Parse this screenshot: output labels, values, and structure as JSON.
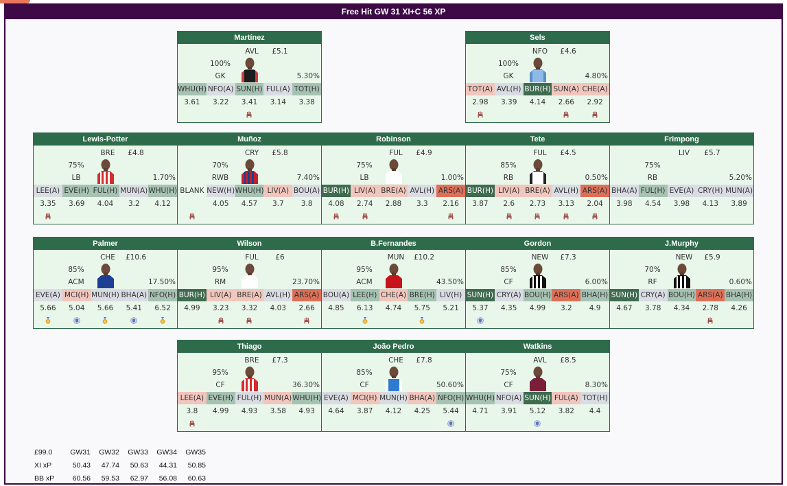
{
  "title": "Free Hit GW 31 XI+C 56 XP",
  "colors": {
    "frame": "#3d0a46",
    "card_header": "#2e6b4a",
    "card_bg": "#e9f6ea",
    "fdr": {
      "1": "#3f6b4f",
      "2": "#a6c2b2",
      "3": "#d9dde3",
      "4": "#f1c6bd",
      "5": "#de6f57"
    }
  },
  "players": [
    {
      "name": "Martínez",
      "team": "AVL",
      "price": "£5.1",
      "prob": "100%",
      "pos": "GK",
      "sel": "5.30%",
      "kit": "gk-black",
      "fixtures": [
        {
          "label": "WHU(H)",
          "fdr": 2
        },
        {
          "label": "NFO(A)",
          "fdr": 3
        },
        {
          "label": "SUN(H)",
          "fdr": 2
        },
        {
          "label": "FUL(A)",
          "fdr": 3
        },
        {
          "label": "TOT(H)",
          "fdr": 2
        }
      ],
      "xp": [
        "3.61",
        "3.22",
        "3.41",
        "3.14",
        "3.38"
      ],
      "icons": [
        "",
        "",
        "glove",
        "",
        ""
      ]
    },
    {
      "name": "Sels",
      "team": "NFO",
      "price": "£4.6",
      "prob": "100%",
      "pos": "GK",
      "sel": "4.80%",
      "kit": "gk-blue",
      "fixtures": [
        {
          "label": "TOT(A)",
          "fdr": 4
        },
        {
          "label": "AVL(H)",
          "fdr": 3
        },
        {
          "label": "BUR(H)",
          "fdr": 1
        },
        {
          "label": "SUN(A)",
          "fdr": 4
        },
        {
          "label": "CHE(A)",
          "fdr": 4
        }
      ],
      "xp": [
        "2.98",
        "3.39",
        "4.14",
        "2.66",
        "2.92"
      ],
      "icons": [
        "glove",
        "",
        "",
        "glove",
        "glove"
      ]
    },
    {
      "name": "Lewis-Potter",
      "team": "BRE",
      "price": "£4.8",
      "prob": "75%",
      "pos": "LB",
      "sel": "1.70%",
      "kit": "bre",
      "fixtures": [
        {
          "label": "LEE(A)",
          "fdr": 3
        },
        {
          "label": "EVE(H)",
          "fdr": 2
        },
        {
          "label": "FUL(H)",
          "fdr": 2
        },
        {
          "label": "MUN(A)",
          "fdr": 3
        },
        {
          "label": "WHU(H)",
          "fdr": 2
        }
      ],
      "xp": [
        "3.35",
        "3.69",
        "4.04",
        "3.2",
        "4.12"
      ],
      "icons": [
        "glove",
        "",
        "",
        "",
        ""
      ]
    },
    {
      "name": "Muñoz",
      "team": "CRY",
      "price": "£5.8",
      "prob": "70%",
      "pos": "RWB",
      "sel": "7.40%",
      "kit": "cry",
      "fixtures": [
        {
          "label": "BLANK",
          "fdr": 0
        },
        {
          "label": "NEW(H)",
          "fdr": 3
        },
        {
          "label": "WHU(H)",
          "fdr": 2
        },
        {
          "label": "LIV(A)",
          "fdr": 4
        },
        {
          "label": "BOU(A)",
          "fdr": 3
        }
      ],
      "xp": [
        "",
        "4.05",
        "4.57",
        "3.7",
        "3.8"
      ],
      "icons": [
        "glove",
        "",
        "",
        "",
        ""
      ]
    },
    {
      "name": "Robinson",
      "team": "FUL",
      "price": "£4.9",
      "prob": "75%",
      "pos": "LB",
      "sel": "1.00%",
      "kit": "ful",
      "fixtures": [
        {
          "label": "BUR(H)",
          "fdr": 1
        },
        {
          "label": "LIV(A)",
          "fdr": 4
        },
        {
          "label": "BRE(A)",
          "fdr": 4
        },
        {
          "label": "AVL(H)",
          "fdr": 3
        },
        {
          "label": "ARS(A)",
          "fdr": 5
        }
      ],
      "xp": [
        "4.08",
        "2.74",
        "2.88",
        "3.3",
        "2.16"
      ],
      "icons": [
        "glove",
        "glove",
        "",
        "",
        "glove"
      ]
    },
    {
      "name": "Tete",
      "team": "FUL",
      "price": "£4.5",
      "prob": "85%",
      "pos": "RB",
      "sel": "0.50%",
      "kit": "ful-dark",
      "fixtures": [
        {
          "label": "BUR(H)",
          "fdr": 1
        },
        {
          "label": "LIV(A)",
          "fdr": 4
        },
        {
          "label": "BRE(A)",
          "fdr": 4
        },
        {
          "label": "AVL(H)",
          "fdr": 3
        },
        {
          "label": "ARS(A)",
          "fdr": 5
        }
      ],
      "xp": [
        "3.87",
        "2.6",
        "2.73",
        "3.13",
        "2.04"
      ],
      "icons": [
        "",
        "glove",
        "glove",
        "glove",
        "glove"
      ]
    },
    {
      "name": "Frimpong",
      "team": "LIV",
      "price": "£5.7",
      "prob": "75%",
      "pos": "RB",
      "sel": "5.20%",
      "kit": "none",
      "fixtures": [
        {
          "label": "BHA(A)",
          "fdr": 3
        },
        {
          "label": "FUL(H)",
          "fdr": 2
        },
        {
          "label": "EVE(A)",
          "fdr": 3
        },
        {
          "label": "CRY(H)",
          "fdr": 3
        },
        {
          "label": "MUN(A)",
          "fdr": 3
        }
      ],
      "xp": [
        "3.98",
        "4.54",
        "3.98",
        "4.13",
        "3.89"
      ],
      "icons": [
        "",
        "",
        "",
        "",
        ""
      ]
    },
    {
      "name": "Palmer",
      "team": "CHE",
      "price": "£10.6",
      "prob": "85%",
      "pos": "ACM",
      "sel": "17.50%",
      "kit": "che",
      "fixtures": [
        {
          "label": "EVE(A)",
          "fdr": 3
        },
        {
          "label": "MCI(H)",
          "fdr": 4
        },
        {
          "label": "MUN(H)",
          "fdr": 3
        },
        {
          "label": "BHA(A)",
          "fdr": 3
        },
        {
          "label": "NFO(H)",
          "fdr": 2
        }
      ],
      "xp": [
        "5.66",
        "5.04",
        "5.66",
        "5.41",
        "6.52"
      ],
      "icons": [
        "medal",
        "shield",
        "medal",
        "shield",
        "medal"
      ]
    },
    {
      "name": "Wilson",
      "team": "FUL",
      "price": "£6",
      "prob": "95%",
      "pos": "RM",
      "sel": "23.70%",
      "kit": "ful",
      "fixtures": [
        {
          "label": "BUR(H)",
          "fdr": 1
        },
        {
          "label": "LIV(A)",
          "fdr": 4
        },
        {
          "label": "BRE(A)",
          "fdr": 4
        },
        {
          "label": "AVL(H)",
          "fdr": 3
        },
        {
          "label": "ARS(A)",
          "fdr": 5
        }
      ],
      "xp": [
        "4.99",
        "3.23",
        "3.32",
        "4.03",
        "2.66"
      ],
      "icons": [
        "",
        "glove",
        "glove",
        "",
        "glove"
      ]
    },
    {
      "name": "B.Fernandes",
      "team": "MUN",
      "price": "£10.2",
      "prob": "95%",
      "pos": "ACM",
      "sel": "43.50%",
      "kit": "mun",
      "fixtures": [
        {
          "label": "BOU(A)",
          "fdr": 3
        },
        {
          "label": "LEE(H)",
          "fdr": 2
        },
        {
          "label": "CHE(A)",
          "fdr": 4
        },
        {
          "label": "BRE(H)",
          "fdr": 2
        },
        {
          "label": "LIV(H)",
          "fdr": 3
        }
      ],
      "xp": [
        "4.85",
        "6.13",
        "4.74",
        "5.75",
        "5.21"
      ],
      "icons": [
        "",
        "medal",
        "",
        "medal",
        ""
      ]
    },
    {
      "name": "Gordon",
      "team": "NEW",
      "price": "£7.3",
      "prob": "85%",
      "pos": "CF",
      "sel": "6.00%",
      "kit": "new",
      "fixtures": [
        {
          "label": "SUN(H)",
          "fdr": 1
        },
        {
          "label": "CRY(A)",
          "fdr": 3
        },
        {
          "label": "BOU(H)",
          "fdr": 2
        },
        {
          "label": "ARS(A)",
          "fdr": 5
        },
        {
          "label": "BHA(H)",
          "fdr": 2
        }
      ],
      "xp": [
        "5.37",
        "4.35",
        "4.99",
        "3.2",
        "4.9"
      ],
      "icons": [
        "shield",
        "",
        "",
        "",
        ""
      ]
    },
    {
      "name": "J.Murphy",
      "team": "NEW",
      "price": "£5.9",
      "prob": "70%",
      "pos": "RF",
      "sel": "0.60%",
      "kit": "new",
      "fixtures": [
        {
          "label": "SUN(H)",
          "fdr": 1
        },
        {
          "label": "CRY(A)",
          "fdr": 3
        },
        {
          "label": "BOU(H)",
          "fdr": 2
        },
        {
          "label": "ARS(A)",
          "fdr": 5
        },
        {
          "label": "BHA(H)",
          "fdr": 2
        }
      ],
      "xp": [
        "4.67",
        "3.78",
        "4.34",
        "2.78",
        "4.26"
      ],
      "icons": [
        "",
        "",
        "",
        "glove",
        ""
      ]
    },
    {
      "name": "Thiago",
      "team": "BRE",
      "price": "£7.3",
      "prob": "95%",
      "pos": "CF",
      "sel": "36.30%",
      "kit": "bre",
      "fixtures": [
        {
          "label": "LEE(A)",
          "fdr": 4
        },
        {
          "label": "EVE(H)",
          "fdr": 2
        },
        {
          "label": "FUL(H)",
          "fdr": 3
        },
        {
          "label": "MUN(A)",
          "fdr": 4
        },
        {
          "label": "WHU(H)",
          "fdr": 2
        }
      ],
      "xp": [
        "3.8",
        "4.99",
        "4.93",
        "3.58",
        "4.93"
      ],
      "icons": [
        "glove",
        "",
        "",
        "",
        ""
      ]
    },
    {
      "name": "João Pedro",
      "team": "CHE",
      "price": "£7.8",
      "prob": "85%",
      "pos": "CF",
      "sel": "50.60%",
      "kit": "bha",
      "fixtures": [
        {
          "label": "EVE(A)",
          "fdr": 3
        },
        {
          "label": "MCI(H)",
          "fdr": 4
        },
        {
          "label": "MUN(H)",
          "fdr": 3
        },
        {
          "label": "BHA(A)",
          "fdr": 4
        },
        {
          "label": "NFO(H)",
          "fdr": 2
        }
      ],
      "xp": [
        "4.64",
        "3.87",
        "4.12",
        "4.25",
        "5.44"
      ],
      "icons": [
        "",
        "",
        "",
        "",
        "shield"
      ]
    },
    {
      "name": "Watkins",
      "team": "AVL",
      "price": "£8.5",
      "prob": "75%",
      "pos": "CF",
      "sel": "8.30%",
      "kit": "avl",
      "fixtures": [
        {
          "label": "WHU(H)",
          "fdr": 2
        },
        {
          "label": "NFO(A)",
          "fdr": 3
        },
        {
          "label": "SUN(H)",
          "fdr": 1
        },
        {
          "label": "FUL(A)",
          "fdr": 4
        },
        {
          "label": "TOT(H)",
          "fdr": 3
        }
      ],
      "xp": [
        "4.71",
        "3.91",
        "5.12",
        "3.82",
        "4.4"
      ],
      "icons": [
        "",
        "",
        "shield",
        "",
        ""
      ]
    }
  ],
  "summary": {
    "budget": "£99.0",
    "gameweeks": [
      "GW31",
      "GW32",
      "GW33",
      "GW34",
      "GW35"
    ],
    "xi_label": "XI xP",
    "xi": [
      "50.43",
      "47.74",
      "50.63",
      "44.31",
      "50.85"
    ],
    "bb_label": "BB xP",
    "bb": [
      "60.56",
      "59.53",
      "62.97",
      "56.08",
      "60.63"
    ]
  }
}
